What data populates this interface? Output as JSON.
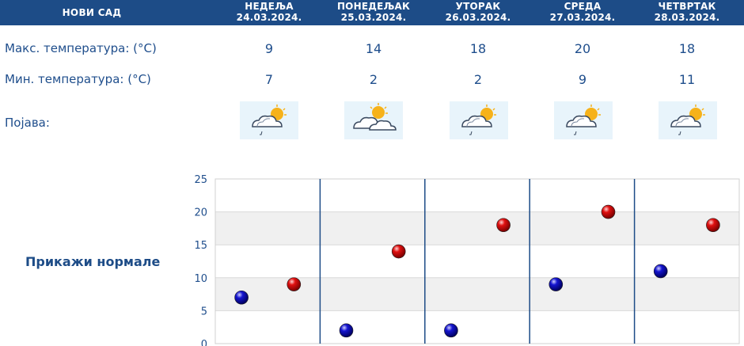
{
  "header": {
    "city": "НОВИ САД",
    "days": [
      {
        "name": "НЕДЕЉА",
        "date": "24.03.2024."
      },
      {
        "name": "ПОНЕДЕЉАК",
        "date": "25.03.2024."
      },
      {
        "name": "УТОРАК",
        "date": "26.03.2024."
      },
      {
        "name": "СРЕДА",
        "date": "27.03.2024."
      },
      {
        "name": "ЧЕТВРТАК",
        "date": "28.03.2024."
      }
    ]
  },
  "rows": {
    "max_label": "Макс. температура: (°C)",
    "min_label": "Мин. температура: (°C)",
    "phenomenon_label": "Појава:",
    "max": [
      "9",
      "14",
      "18",
      "20",
      "18"
    ],
    "min": [
      "7",
      "2",
      "2",
      "9",
      "11"
    ],
    "icons": [
      "cloud-sun-light-rain-icon",
      "cloud-sun-icon",
      "cloud-sun-light-rain-icon",
      "cloud-sun-light-rain-icon",
      "cloud-sun-light-rain-icon"
    ]
  },
  "normals_link": "Прикажи нормале",
  "colors": {
    "header_bg": "#1d4c87",
    "text": "#1f4e8c",
    "max_dot": "#d10000",
    "min_dot": "#1010c0",
    "grid_band": "#f0f0f0",
    "day_divider": "#1d4c87"
  },
  "chart_data": {
    "type": "scatter",
    "categories": [
      "24.03.2024.",
      "25.03.2024.",
      "26.03.2024.",
      "27.03.2024.",
      "28.03.2024."
    ],
    "series": [
      {
        "key": "min",
        "values": [
          7,
          2,
          2,
          9,
          11
        ],
        "color": "#1010c0"
      },
      {
        "key": "max",
        "values": [
          9,
          14,
          18,
          20,
          18
        ],
        "color": "#d10000"
      }
    ],
    "yticks": [
      "25",
      "20",
      "15",
      "10",
      "5",
      "0"
    ],
    "ylim": [
      0,
      25
    ],
    "grid": true,
    "legend": "none"
  }
}
